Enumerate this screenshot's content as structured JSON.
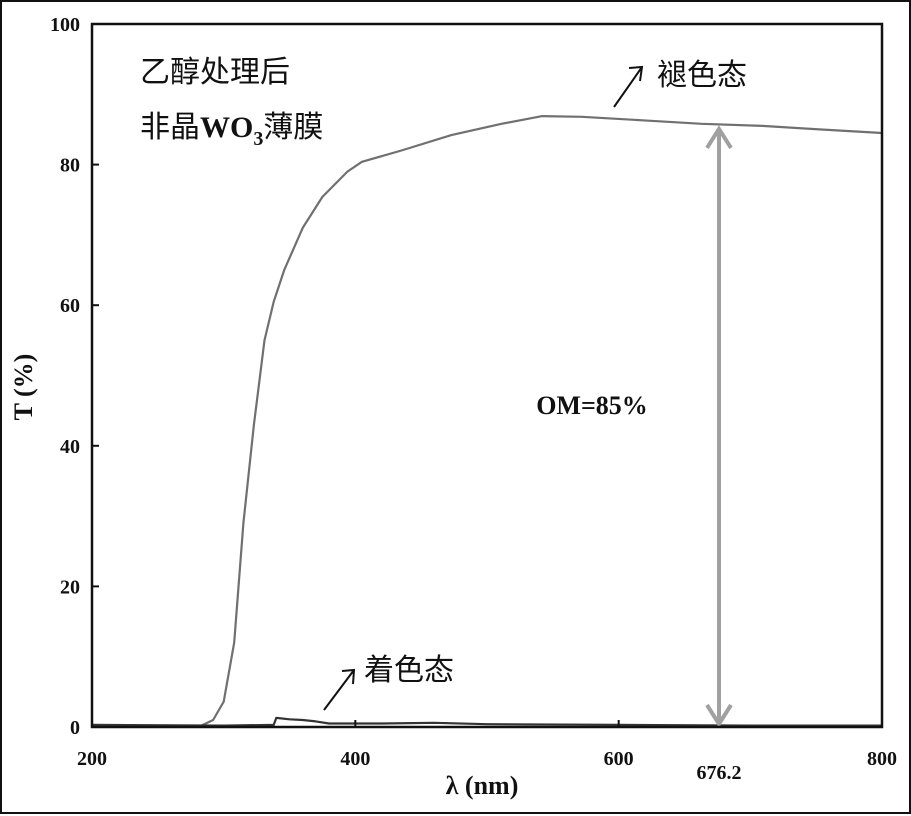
{
  "chart_data": {
    "type": "line",
    "title": "",
    "xlabel": "λ (nm)",
    "ylabel": "T (%)",
    "xlim": [
      200,
      800
    ],
    "ylim": [
      0,
      100
    ],
    "xticks": [
      200,
      400,
      600,
      800
    ],
    "yticks": [
      0,
      20,
      40,
      60,
      80,
      100
    ],
    "grid": false,
    "series": [
      {
        "name": "褪色态",
        "color": "#707070",
        "x": [
          200,
          283,
          292,
          300,
          308,
          315,
          323,
          331,
          338,
          346,
          360,
          375,
          394,
          405,
          435,
          473,
          511,
          542,
          572,
          618,
          663,
          709,
          754,
          800
        ],
        "y": [
          0.2,
          0.2,
          1,
          3.6,
          12,
          29,
          43,
          55,
          60.5,
          65,
          71,
          75.4,
          79,
          80.4,
          82,
          84.2,
          85.8,
          86.9,
          86.8,
          86.3,
          85.8,
          85.5,
          85,
          84.5
        ]
      },
      {
        "name": "着色态",
        "color": "#333333",
        "x": [
          200,
          300,
          338,
          340,
          350,
          360,
          370,
          380,
          420,
          460,
          500,
          600,
          700,
          800
        ],
        "y": [
          0.3,
          0.2,
          0.3,
          1.3,
          1.1,
          1,
          0.8,
          0.5,
          0.5,
          0.6,
          0.4,
          0.3,
          0.2,
          0.2
        ]
      }
    ],
    "annotations": {
      "sample_line1": "乙醇处理后",
      "sample_line2_pre": "非晶",
      "sample_line2_chem": "WO",
      "sample_line2_sub": "3",
      "sample_line2_post": "薄膜",
      "bleached_label": "褪色态",
      "colored_label": "着色态",
      "om_label": "OM=85%",
      "om_wavelength": 676.2,
      "om_wavelength_label": "676.2",
      "om_top": 85.5,
      "om_bottom": 0
    }
  }
}
